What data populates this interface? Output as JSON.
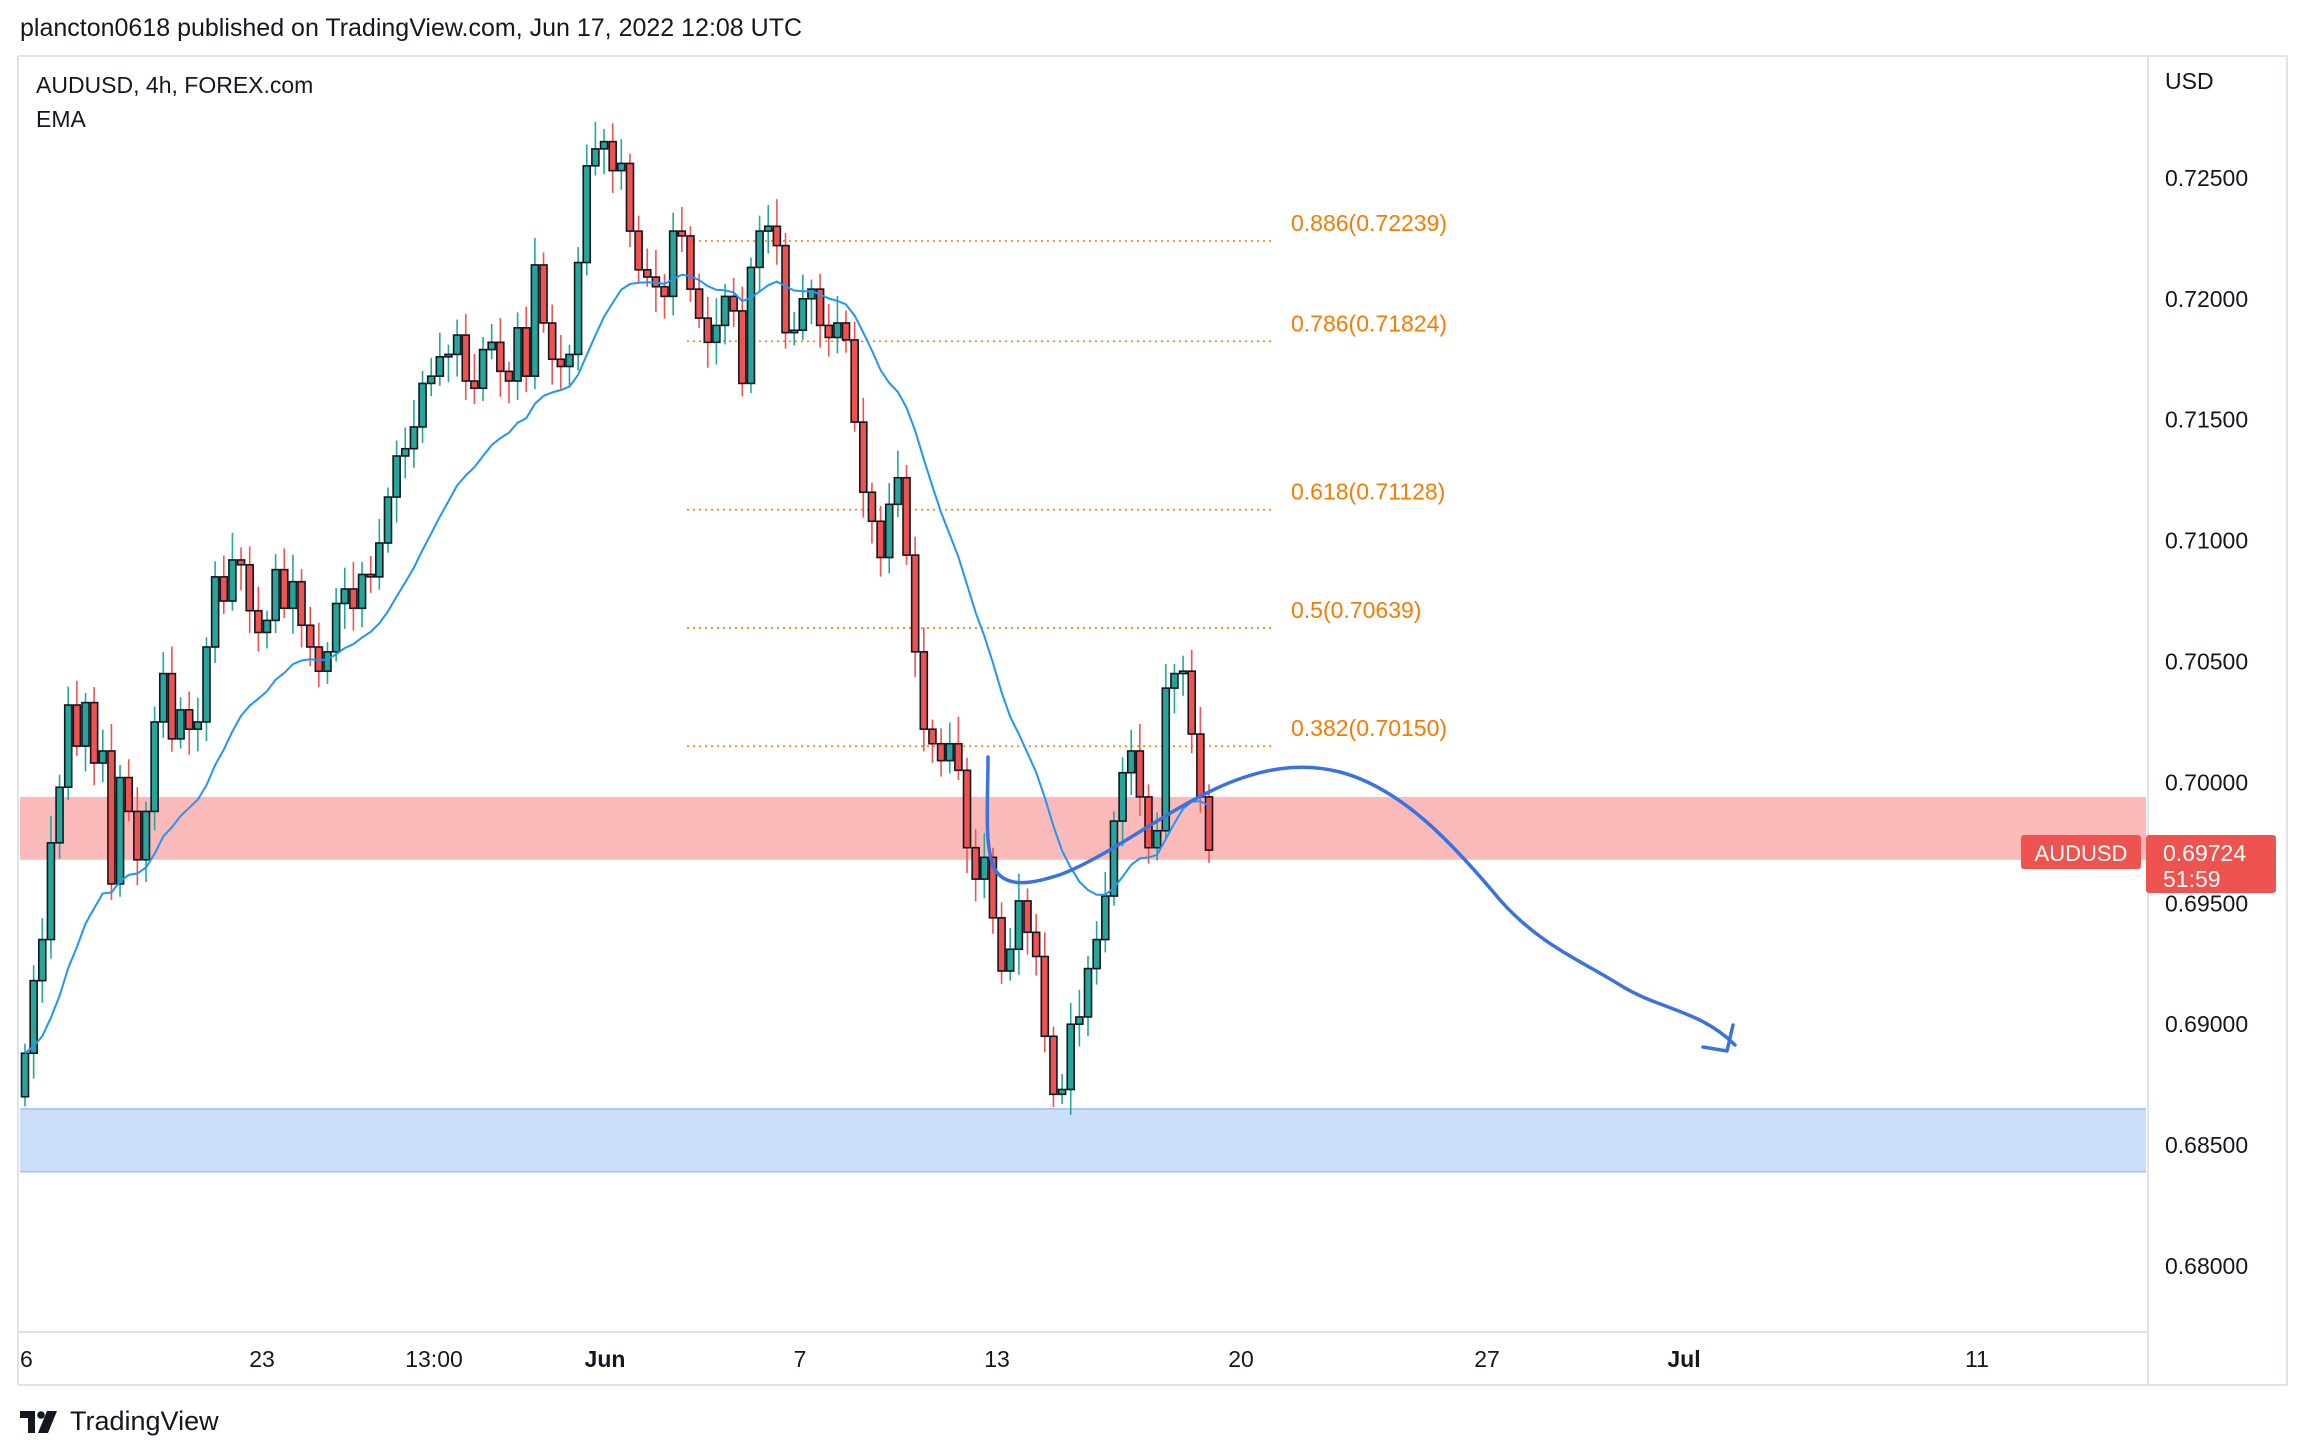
{
  "header": {
    "published_text": "plancton0618 published on TradingView.com, Jun 17, 2022 12:08 UTC"
  },
  "legend": {
    "symbol_line": "AUDUSD, 4h, FOREX.com",
    "indicator": "EMA"
  },
  "colors": {
    "up": "#26a69a",
    "down": "#ef5350",
    "ema": "#2196f3",
    "fib": "#f57c00",
    "resistance_zone": "#f99c9c",
    "support_zone": "#c6dbf7",
    "arrow": "#3b72e0",
    "price_tag": "#ef5350"
  },
  "price_axis": {
    "currency": "USD",
    "ticks": [
      "0.72500",
      "0.72000",
      "0.71500",
      "0.71000",
      "0.70500",
      "0.70000",
      "0.69500",
      "0.69000",
      "0.68500",
      "0.68000"
    ]
  },
  "time_axis": {
    "labels": [
      "6",
      "23",
      "13:00",
      "Jun",
      "7",
      "13",
      "20",
      "27",
      "Jul",
      "11"
    ]
  },
  "price_tag": {
    "symbol": "AUDUSD",
    "price": "0.69724",
    "countdown": "51:59"
  },
  "footer": {
    "brand": "TradingView"
  },
  "chart_data": {
    "type": "candlestick",
    "title": "AUDUSD, 4h, FOREX.com",
    "xlabel": "",
    "ylabel": "USD",
    "ylim": [
      0.677,
      0.7285
    ],
    "fib_levels": [
      {
        "label": "0.886(0.72239)",
        "price": 0.72239
      },
      {
        "label": "0.786(0.71824)",
        "price": 0.71824
      },
      {
        "label": "0.618(0.71128)",
        "price": 0.71128
      },
      {
        "label": "0.5(0.70639)",
        "price": 0.70639
      },
      {
        "label": "0.382(0.70150)",
        "price": 0.7015
      }
    ],
    "zones": [
      {
        "name": "resistance",
        "from": 0.6968,
        "to": 0.6994
      },
      {
        "name": "support",
        "from": 0.6839,
        "to": 0.6865
      }
    ],
    "last_price": 0.69724,
    "close_series": [
      0.6888,
      0.6918,
      0.6935,
      0.6975,
      0.6998,
      0.7032,
      0.7015,
      0.7033,
      0.7008,
      0.7013,
      0.6958,
      0.7002,
      0.6988,
      0.6968,
      0.6988,
      0.7025,
      0.7045,
      0.7018,
      0.703,
      0.7022,
      0.7025,
      0.7056,
      0.7085,
      0.7075,
      0.7092,
      0.709,
      0.7071,
      0.7062,
      0.7067,
      0.7088,
      0.7072,
      0.7083,
      0.7065,
      0.7056,
      0.7046,
      0.7054,
      0.7074,
      0.708,
      0.7072,
      0.7086,
      0.7085,
      0.7099,
      0.7118,
      0.7135,
      0.7138,
      0.7147,
      0.7165,
      0.7168,
      0.7176,
      0.7177,
      0.7185,
      0.7166,
      0.7163,
      0.7179,
      0.7182,
      0.717,
      0.7166,
      0.7188,
      0.7168,
      0.7214,
      0.719,
      0.7175,
      0.7172,
      0.7177,
      0.7215,
      0.7255,
      0.7262,
      0.7265,
      0.7253,
      0.7256,
      0.7228,
      0.7212,
      0.7209,
      0.7205,
      0.7201,
      0.7228,
      0.7226,
      0.7204,
      0.7192,
      0.7182,
      0.7189,
      0.7201,
      0.7195,
      0.7165,
      0.7213,
      0.7228,
      0.723,
      0.7222,
      0.7186,
      0.7187,
      0.72,
      0.7204,
      0.7189,
      0.7184,
      0.719,
      0.7183,
      0.7149,
      0.712,
      0.7108,
      0.7093,
      0.7115,
      0.7126,
      0.7094,
      0.7054,
      0.7022,
      0.7016,
      0.7009,
      0.7016,
      0.7005,
      0.6973,
      0.696,
      0.6969,
      0.6944,
      0.6922,
      0.6931,
      0.6951,
      0.6938,
      0.6928,
      0.6895,
      0.6871,
      0.6873,
      0.69,
      0.6903,
      0.6923,
      0.6935,
      0.6953,
      0.6984,
      0.7004,
      0.7013,
      0.6994,
      0.6973,
      0.698,
      0.7039,
      0.7045,
      0.7046,
      0.702,
      0.6994,
      0.6972
    ]
  }
}
